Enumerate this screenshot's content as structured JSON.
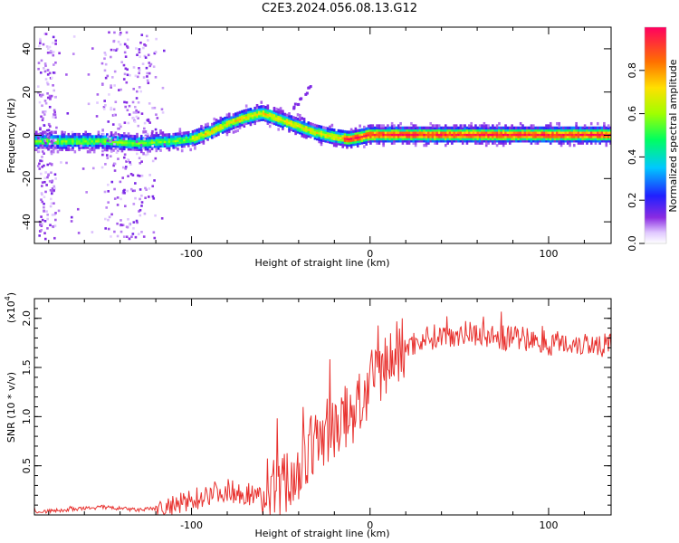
{
  "title": "C2E3.2024.056.08.13.G12",
  "chart_data": [
    {
      "type": "heatmap",
      "name": "spectrogram",
      "xlabel": "Height of straight line (km)",
      "ylabel": "Frequency (Hz)",
      "xlim": [
        -188,
        135
      ],
      "ylim": [
        -50,
        50
      ],
      "xticks": [
        -100,
        0,
        100
      ],
      "yticks": [
        -40,
        -20,
        0,
        20,
        40
      ],
      "ridge": {
        "x": [
          -188,
          -170,
          -150,
          -130,
          -110,
          -100,
          -90,
          -80,
          -70,
          -60,
          -50,
          -40,
          -30,
          -20,
          -12,
          -5,
          0,
          10,
          30,
          60,
          100,
          135
        ],
        "y": [
          -3,
          -3,
          -3,
          -4,
          -3,
          -2,
          1,
          5,
          8,
          10,
          7,
          4,
          1,
          -1,
          -2,
          -1,
          0,
          0,
          0,
          0,
          0,
          0
        ]
      },
      "colorbar": {
        "label": "Normalized spectral amplitude",
        "range": [
          0.0,
          1.0
        ],
        "ticks": [
          0.0,
          0.2,
          0.4,
          0.6,
          0.8
        ]
      }
    },
    {
      "type": "line",
      "name": "snr",
      "xlabel": "Height of straight line (km)",
      "ylabel": "SNR (10 * v/v)",
      "y_scale_note": "(x10",
      "y_scale_exp": "4",
      "xlim": [
        -188,
        135
      ],
      "ylim": [
        0,
        2.2
      ],
      "xticks": [
        -100,
        0,
        100
      ],
      "yticks": [
        0.5,
        1.0,
        1.5,
        2.0
      ],
      "series": [
        {
          "name": "SNR",
          "color": "#e8322f",
          "x": [
            -188,
            -170,
            -150,
            -130,
            -110,
            -100,
            -90,
            -80,
            -70,
            -60,
            -50,
            -40,
            -35,
            -30,
            -25,
            -20,
            -15,
            -10,
            -5,
            0,
            5,
            10,
            15,
            20,
            25,
            30,
            40,
            50,
            60,
            70,
            80,
            90,
            100,
            110,
            120,
            135
          ],
          "y": [
            0.03,
            0.05,
            0.08,
            0.05,
            0.08,
            0.15,
            0.22,
            0.25,
            0.22,
            0.18,
            0.28,
            0.45,
            0.6,
            0.75,
            0.85,
            0.9,
            0.95,
            1.05,
            1.15,
            1.3,
            1.45,
            1.55,
            1.65,
            1.7,
            1.75,
            1.8,
            1.82,
            1.85,
            1.85,
            1.8,
            1.8,
            1.78,
            1.75,
            1.75,
            1.75,
            1.72
          ]
        }
      ]
    }
  ]
}
